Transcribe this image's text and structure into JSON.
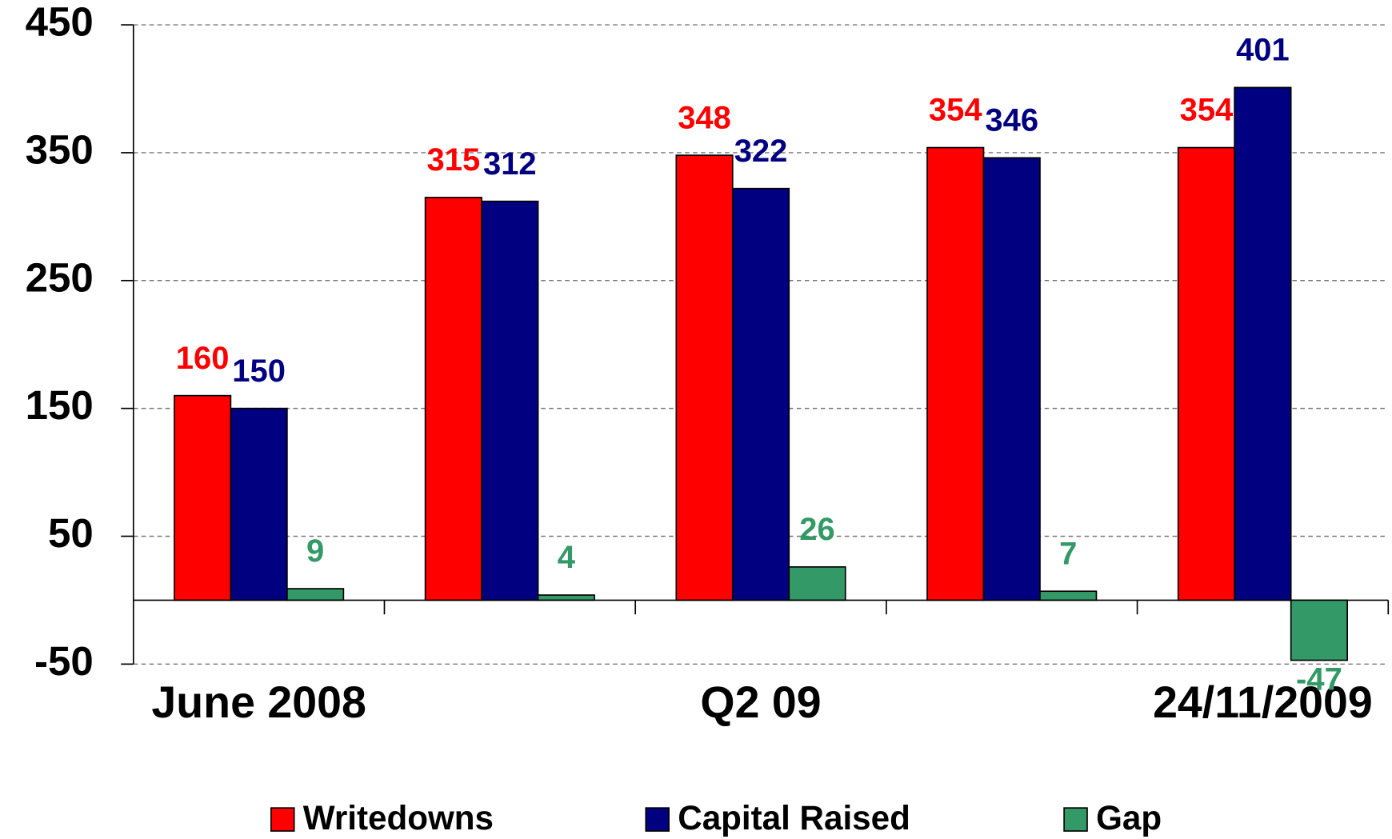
{
  "chart_data": {
    "type": "bar",
    "categories": [
      "June 2008",
      null,
      "Q2 09",
      null,
      "24/11/2009"
    ],
    "series": [
      {
        "name": "Writedowns",
        "color": "#ff0000",
        "values": [
          160,
          315,
          348,
          354,
          354
        ]
      },
      {
        "name": "Capital Raised",
        "color": "#000080",
        "values": [
          150,
          312,
          322,
          346,
          401
        ]
      },
      {
        "name": "Gap",
        "color": "#339966",
        "values": [
          9,
          4,
          26,
          7,
          -47
        ]
      }
    ],
    "ylim": [
      -50,
      450
    ],
    "yticks": [
      -50,
      50,
      150,
      250,
      350,
      450
    ],
    "grid": true,
    "legend": "bottom"
  }
}
